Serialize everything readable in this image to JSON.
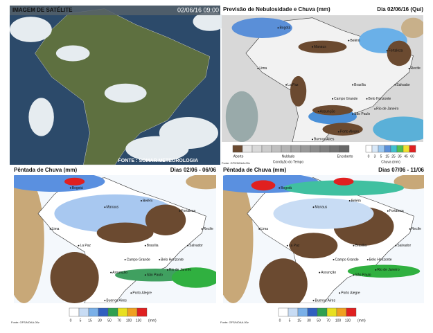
{
  "satellite": {
    "title": "IMAGEM DE SATÉLITE",
    "timestamp": "02/06/16 09:00",
    "source": "FONTE : SOMAR METEOROLOGIA"
  },
  "forecast": {
    "title": "Previsão de Nebulosidade e Chuva (mm)",
    "date": "Dia 02/06/16 (Qui)",
    "condition_labels": [
      "Aberto",
      "Nublado",
      "Encoberto"
    ],
    "condition_title": "Condição do Tempo",
    "rain_ticks": [
      0,
      3,
      5,
      15,
      25,
      35,
      45,
      60
    ],
    "rain_title": "Chuva (mm)",
    "source": "Fonte: GFS/NOAA-00z"
  },
  "pentads": [
    {
      "title": "Pêntada de Chuva (mm)",
      "dates": "Dias 02/06 - 06/06",
      "ticks": [
        0,
        5,
        15,
        30,
        50,
        70,
        100,
        130
      ],
      "unit": "(mm)",
      "source": "Fonte: GFS/NOAA-00z"
    },
    {
      "title": "Pêntada de Chuva (mm)",
      "dates": "Dias 07/06 - 11/06",
      "ticks": [
        0,
        5,
        15,
        30,
        50,
        70,
        100,
        130
      ],
      "unit": "(mm)",
      "source": "Fonte: GFS/NOAA-00z"
    }
  ],
  "cities": [
    "Bogotá",
    "Manaus",
    "Belém",
    "Fortaleza",
    "Recife",
    "Salvador",
    "Brasília",
    "Belo Horizonte",
    "Campo Grande",
    "Rio de Janeiro",
    "São Paulo",
    "Assunção",
    "Porto Alegre",
    "Buenos Aires",
    "Lima",
    "La Paz"
  ]
}
